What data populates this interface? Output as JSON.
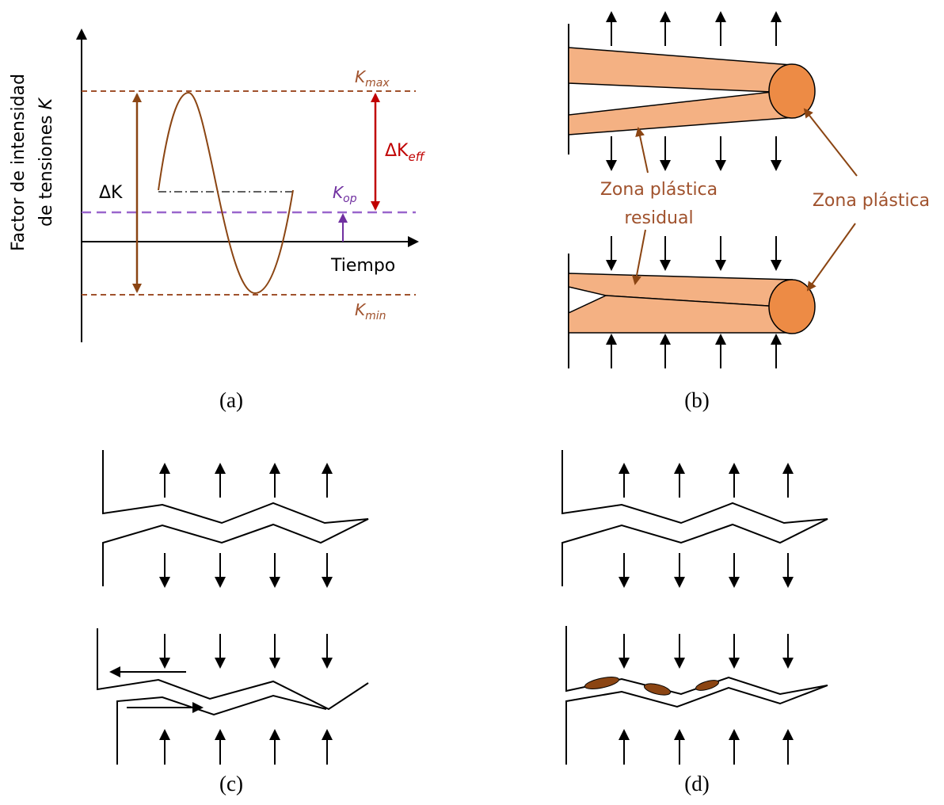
{
  "panel_a": {
    "y_axis_label": {
      "line1": "Factor de intensidad",
      "line2": "de tensiones",
      "symbol": "K"
    },
    "x_axis_label": "Tiempo",
    "k_max": {
      "main": "K",
      "sub": "max"
    },
    "k_min": {
      "main": "K",
      "sub": "min"
    },
    "k_op": {
      "main": "K",
      "sub": "op"
    },
    "delta_k": "ΔK",
    "delta_k_eff": {
      "main": "ΔK",
      "sub": "eff"
    },
    "caption": "(a)"
  },
  "panel_b": {
    "residual_label": {
      "line1": "Zona plástica",
      "line2": "residual"
    },
    "plastic_label": "Zona plástica",
    "caption": "(b)"
  },
  "panel_c": {
    "caption": "(c)"
  },
  "panel_d": {
    "caption": "(d)"
  }
}
